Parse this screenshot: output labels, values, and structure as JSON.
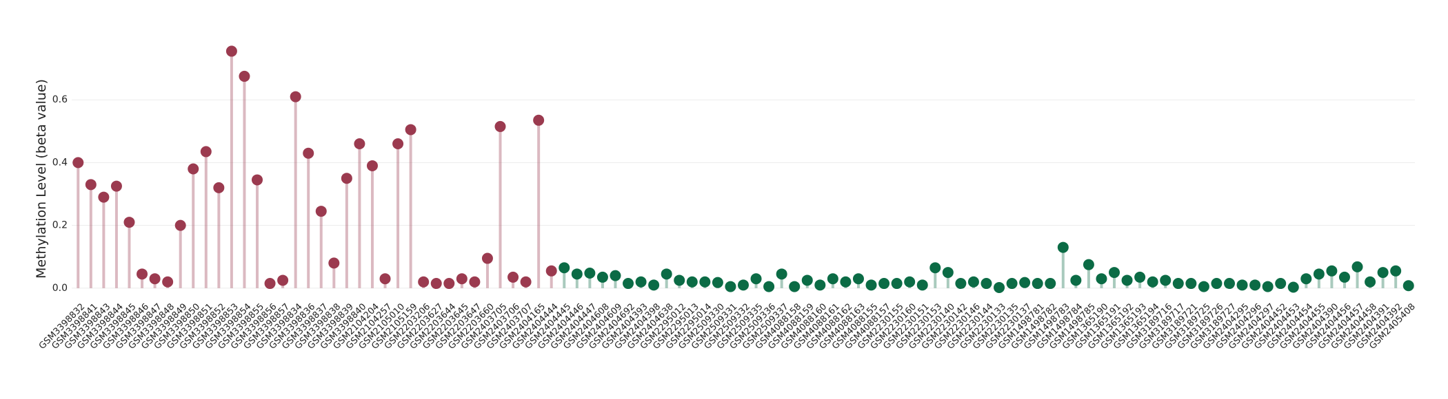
{
  "chart_data": {
    "type": "lollipop",
    "y_label": "Methylation Level (beta value)",
    "categories": [
      "GSM3398832",
      "GSM3398841",
      "GSM3398843",
      "GSM3398844",
      "GSM3398845",
      "GSM3398846",
      "GSM3398847",
      "GSM3398848",
      "GSM3398849",
      "GSM3398850",
      "GSM3398851",
      "GSM3398852",
      "GSM3398853",
      "GSM3398854",
      "GSM3398855",
      "GSM3398856",
      "GSM3398857",
      "GSM3398834",
      "GSM3398836",
      "GSM3398837",
      "GSM3398838",
      "GSM3398839",
      "GSM3398840",
      "GSM2104204",
      "GSM2104257",
      "GSM2105010",
      "GSM2105159",
      "GSM2203206",
      "GSM2203627",
      "GSM2203644",
      "GSM2203645",
      "GSM2203647",
      "GSM2203660",
      "GSM2403705",
      "GSM2403706",
      "GSM2403707",
      "GSM2404165",
      "GSM2404444",
      "GSM2404445",
      "GSM2404446",
      "GSM2404447",
      "GSM2404608",
      "GSM2404609",
      "GSM2404692",
      "GSM2404393",
      "GSM2404398",
      "GSM2404638",
      "GSM2295012",
      "GSM2295013",
      "GSM2295014",
      "GSM2509330",
      "GSM2509331",
      "GSM2509332",
      "GSM2509335",
      "GSM2509336",
      "GSM2509337",
      "GSM4088158",
      "GSM4088159",
      "GSM4088160",
      "GSM4088161",
      "GSM4088162",
      "GSM4088163",
      "GSM4088155",
      "GSM4088157",
      "GSM2230155",
      "GSM2230160",
      "GSM2230151",
      "GSM2230153",
      "GSM2230140",
      "GSM2230142",
      "GSM2230146",
      "GSM2230144",
      "GSM2230133",
      "GSM2230135",
      "GSM2230137",
      "GSM1498781",
      "GSM1498782",
      "GSM1498783",
      "GSM1498784",
      "GSM1498785",
      "GSM1365190",
      "GSM1365191",
      "GSM1365192",
      "GSM1365193",
      "GSM1365194",
      "GSM3189716",
      "GSM3189717",
      "GSM3189721",
      "GSM3189725",
      "GSM3189726",
      "GSM3189727",
      "GSM2404295",
      "GSM2404296",
      "GSM2404297",
      "GSM2404452",
      "GSM2404453",
      "GSM2404454",
      "GSM2404455",
      "GSM2404390",
      "GSM2404456",
      "GSM2404457",
      "GSM2404458",
      "GSM2404391",
      "GSM2404392",
      "GSM2405408"
    ],
    "values": [
      0.4,
      0.33,
      0.29,
      0.325,
      0.21,
      0.045,
      0.03,
      0.02,
      0.2,
      0.38,
      0.435,
      0.32,
      0.755,
      0.675,
      0.345,
      0.015,
      0.025,
      0.61,
      0.43,
      0.245,
      0.08,
      0.35,
      0.46,
      0.39,
      0.03,
      0.46,
      0.505,
      0.02,
      0.015,
      0.015,
      0.03,
      0.02,
      0.095,
      0.515,
      0.035,
      0.02,
      0.535,
      0.055,
      0.065,
      0.045,
      0.048,
      0.035,
      0.04,
      0.015,
      0.02,
      0.01,
      0.045,
      0.025,
      0.02,
      0.02,
      0.018,
      0.005,
      0.01,
      0.03,
      0.005,
      0.045,
      0.005,
      0.025,
      0.01,
      0.03,
      0.02,
      0.03,
      0.01,
      0.015,
      0.015,
      0.02,
      0.01,
      0.065,
      0.05,
      0.015,
      0.02,
      0.015,
      0.002,
      0.015,
      0.018,
      0.015,
      0.015,
      0.13,
      0.025,
      0.075,
      0.03,
      0.05,
      0.025,
      0.035,
      0.02,
      0.025,
      0.015,
      0.015,
      0.005,
      0.015,
      0.015,
      0.01,
      0.01,
      0.005,
      0.015,
      0.003,
      0.03,
      0.045,
      0.055,
      0.035,
      0.068,
      0.02,
      0.05,
      0.055,
      0.008
    ],
    "colors": [
      "#9b3a4f",
      "#9b3a4f",
      "#9b3a4f",
      "#9b3a4f",
      "#9b3a4f",
      "#9b3a4f",
      "#9b3a4f",
      "#9b3a4f",
      "#9b3a4f",
      "#9b3a4f",
      "#9b3a4f",
      "#9b3a4f",
      "#9b3a4f",
      "#9b3a4f",
      "#9b3a4f",
      "#9b3a4f",
      "#9b3a4f",
      "#9b3a4f",
      "#9b3a4f",
      "#9b3a4f",
      "#9b3a4f",
      "#9b3a4f",
      "#9b3a4f",
      "#9b3a4f",
      "#9b3a4f",
      "#9b3a4f",
      "#9b3a4f",
      "#9b3a4f",
      "#9b3a4f",
      "#9b3a4f",
      "#9b3a4f",
      "#9b3a4f",
      "#9b3a4f",
      "#9b3a4f",
      "#9b3a4f",
      "#9b3a4f",
      "#9b3a4f",
      "#9b3a4f",
      "#0b6b45",
      "#0b6b45",
      "#0b6b45",
      "#0b6b45",
      "#0b6b45",
      "#0b6b45",
      "#0b6b45",
      "#0b6b45",
      "#0b6b45",
      "#0b6b45",
      "#0b6b45",
      "#0b6b45",
      "#0b6b45",
      "#0b6b45",
      "#0b6b45",
      "#0b6b45",
      "#0b6b45",
      "#0b6b45",
      "#0b6b45",
      "#0b6b45",
      "#0b6b45",
      "#0b6b45",
      "#0b6b45",
      "#0b6b45",
      "#0b6b45",
      "#0b6b45",
      "#0b6b45",
      "#0b6b45",
      "#0b6b45",
      "#0b6b45",
      "#0b6b45",
      "#0b6b45",
      "#0b6b45",
      "#0b6b45",
      "#0b6b45",
      "#0b6b45",
      "#0b6b45",
      "#0b6b45",
      "#0b6b45",
      "#0b6b45",
      "#0b6b45",
      "#0b6b45",
      "#0b6b45",
      "#0b6b45",
      "#0b6b45",
      "#0b6b45",
      "#0b6b45",
      "#0b6b45",
      "#0b6b45",
      "#0b6b45",
      "#0b6b45",
      "#0b6b45",
      "#0b6b45",
      "#0b6b45",
      "#0b6b45",
      "#0b6b45",
      "#0b6b45",
      "#0b6b45",
      "#0b6b45",
      "#0b6b45",
      "#0b6b45",
      "#0b6b45",
      "#0b6b45",
      "#0b6b45",
      "#0b6b45",
      "#0b6b45",
      "#0b6b45"
    ],
    "ylim": [
      -0.02,
      0.78
    ],
    "yticks": [
      {
        "value": 0,
        "label": "0.0"
      },
      0.2,
      0.4,
      0.6
    ],
    "grid": true
  }
}
